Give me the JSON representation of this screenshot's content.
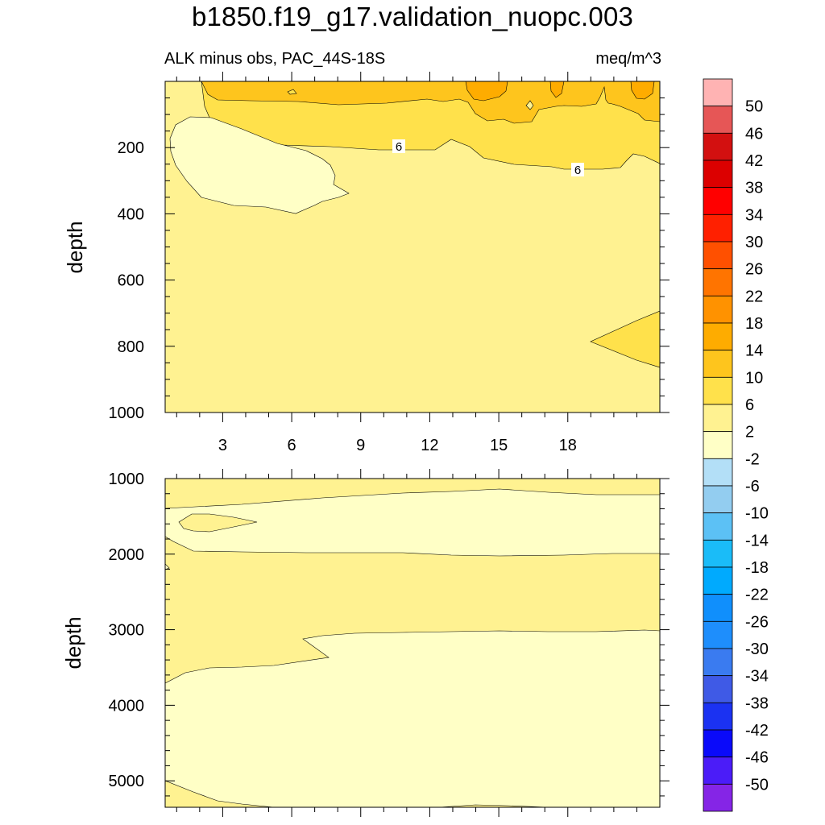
{
  "chart_data": {
    "title": "b1850.f19_g17.validation_nuopc.003",
    "subtitle_left": "ALK minus obs, PAC_44S-18S",
    "subtitle_right": "meq/m^3",
    "type": "contour",
    "panels": [
      {
        "name": "upper",
        "ylabel": "depth",
        "xlim": [
          0.5,
          22
        ],
        "ylim": [
          0,
          1000
        ],
        "y_inverted": true,
        "x_ticks": [
          3,
          6,
          9,
          12,
          15,
          18
        ],
        "y_ticks": [
          200,
          400,
          600,
          800,
          1000
        ],
        "contour_labels": [
          "6",
          "6"
        ],
        "regions": [
          {
            "level": "2 to 6",
            "color": "#fff291"
          },
          {
            "level": "6 to 10",
            "color": "#ffe14b"
          },
          {
            "level": "10 to 14",
            "color": "#fec51d"
          },
          {
            "level": "14 to 18",
            "color": "#feac00"
          },
          {
            "level": "-2 to 2",
            "color": "#ffffc6"
          }
        ]
      },
      {
        "name": "lower",
        "ylabel": "depth",
        "xlim": [
          0.5,
          22
        ],
        "ylim": [
          1000,
          5350
        ],
        "y_inverted": true,
        "x_ticks": [
          3,
          6,
          9,
          12,
          15,
          18
        ],
        "y_ticks": [
          1000,
          2000,
          3000,
          4000,
          5000
        ],
        "regions": [
          {
            "level": "2 to 6",
            "color": "#fff291"
          },
          {
            "level": "-2 to 2",
            "color": "#ffffc6"
          }
        ]
      }
    ],
    "colorbar": {
      "labels": [
        "50",
        "46",
        "42",
        "38",
        "34",
        "30",
        "26",
        "22",
        "18",
        "14",
        "10",
        "6",
        "2",
        "-2",
        "-6",
        "-10",
        "-14",
        "-18",
        "-22",
        "-26",
        "-30",
        "-34",
        "-38",
        "-42",
        "-46",
        "-50"
      ],
      "colors": [
        "#ffb3b3",
        "#e65656",
        "#d31010",
        "#dc0000",
        "#ff0000",
        "#ff2000",
        "#ff5000",
        "#ff7400",
        "#ff9200",
        "#feac00",
        "#fec51d",
        "#ffe14b",
        "#fff291",
        "#ffffc6",
        "#b3dff7",
        "#93cdf0",
        "#5cc1f5",
        "#1abcf8",
        "#00aafe",
        "#108ffc",
        "#1e8efc",
        "#3a7bf0",
        "#3f5ae6",
        "#1b32f2",
        "#0a0afa",
        "#4b1cf8",
        "#8525e6"
      ]
    }
  }
}
